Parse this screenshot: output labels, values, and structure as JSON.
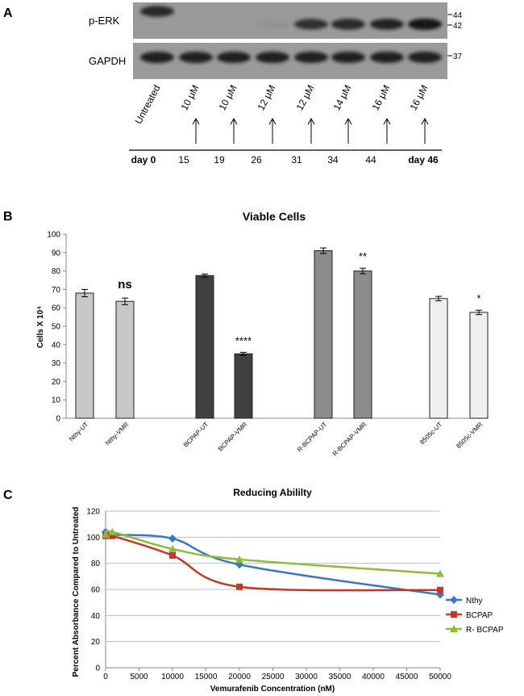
{
  "panel_a": {
    "label": "A",
    "row_labels": {
      "perk": "p-ERK",
      "gapdh": "GAPDH"
    },
    "mw_markers": [
      "44",
      "42",
      "37"
    ],
    "lanes": [
      "Untreated",
      "10 μM",
      "10 μM",
      "12 μM",
      "12 μM",
      "14 μM",
      "16 μM",
      "16 μM"
    ],
    "perk_intensity": [
      0.85,
      0.0,
      0.0,
      0.05,
      0.8,
      0.85,
      0.9,
      1.0
    ],
    "days": [
      "day 0",
      "15",
      "19",
      "26",
      "31",
      "34",
      "44",
      "day 46"
    ]
  },
  "panel_b_label": "B",
  "panel_c_label": "C",
  "colors": {
    "blot_bg": "#9a9a9a",
    "band": "#141414",
    "nthy_bar": "#c8c8c8",
    "bcpap_bar": "#404040",
    "rbcpap_bar": "#8c8c8c",
    "c8505_bar": "#efefef",
    "line_nthy": "#3b78c4",
    "line_bcpap": "#c0392b",
    "line_rbcpap": "#8dbb3a"
  },
  "chart_data": [
    {
      "type": "bar",
      "title": "Viable Cells",
      "ylabel": "Cells X 10⁴",
      "ylim": [
        0,
        100
      ],
      "yticks": [
        0,
        10,
        20,
        30,
        40,
        50,
        60,
        70,
        80,
        90,
        100
      ],
      "categories": [
        "Nthy-UT",
        "Nthy-VMR",
        "BCPAP-UT",
        "BCPAP-VMR",
        "R-BCPAP-UT",
        "R-BCPAP-VMR",
        "8505c-UT",
        "8505c-VMR"
      ],
      "values": [
        68,
        63.5,
        77.5,
        35,
        91,
        80,
        65,
        57.5
      ],
      "errors": [
        2,
        1.8,
        0.8,
        0.8,
        1.5,
        1.5,
        1.2,
        1.2
      ],
      "annotations": [
        "",
        "ns",
        "",
        "****",
        "",
        "**",
        "",
        "*"
      ]
    },
    {
      "type": "line",
      "title": "Reducing Abililty",
      "xlabel": "Vemurafenib Concentration (nM)",
      "ylabel": "Percent Absorbance Compared to Untreated",
      "xlim": [
        0,
        50000
      ],
      "ylim": [
        0,
        120
      ],
      "xticks": [
        0,
        5000,
        10000,
        15000,
        20000,
        25000,
        30000,
        35000,
        40000,
        45000,
        50000
      ],
      "yticks": [
        0,
        20,
        40,
        60,
        80,
        100,
        120
      ],
      "legend_position": "right",
      "series": [
        {
          "name": "Nthy",
          "marker": "diamond",
          "x": [
            0,
            1000,
            10000,
            20000,
            50000
          ],
          "y": [
            104,
            102,
            99,
            79,
            56
          ]
        },
        {
          "name": "BCPAP",
          "marker": "square",
          "x": [
            0,
            1000,
            10000,
            20000,
            50000
          ],
          "y": [
            101,
            101,
            86,
            62,
            59.5
          ]
        },
        {
          "name": "R- BCPAP",
          "marker": "triangle",
          "x": [
            0,
            1000,
            10000,
            20000,
            50000
          ],
          "y": [
            102,
            104,
            91,
            83,
            72
          ]
        }
      ]
    }
  ]
}
